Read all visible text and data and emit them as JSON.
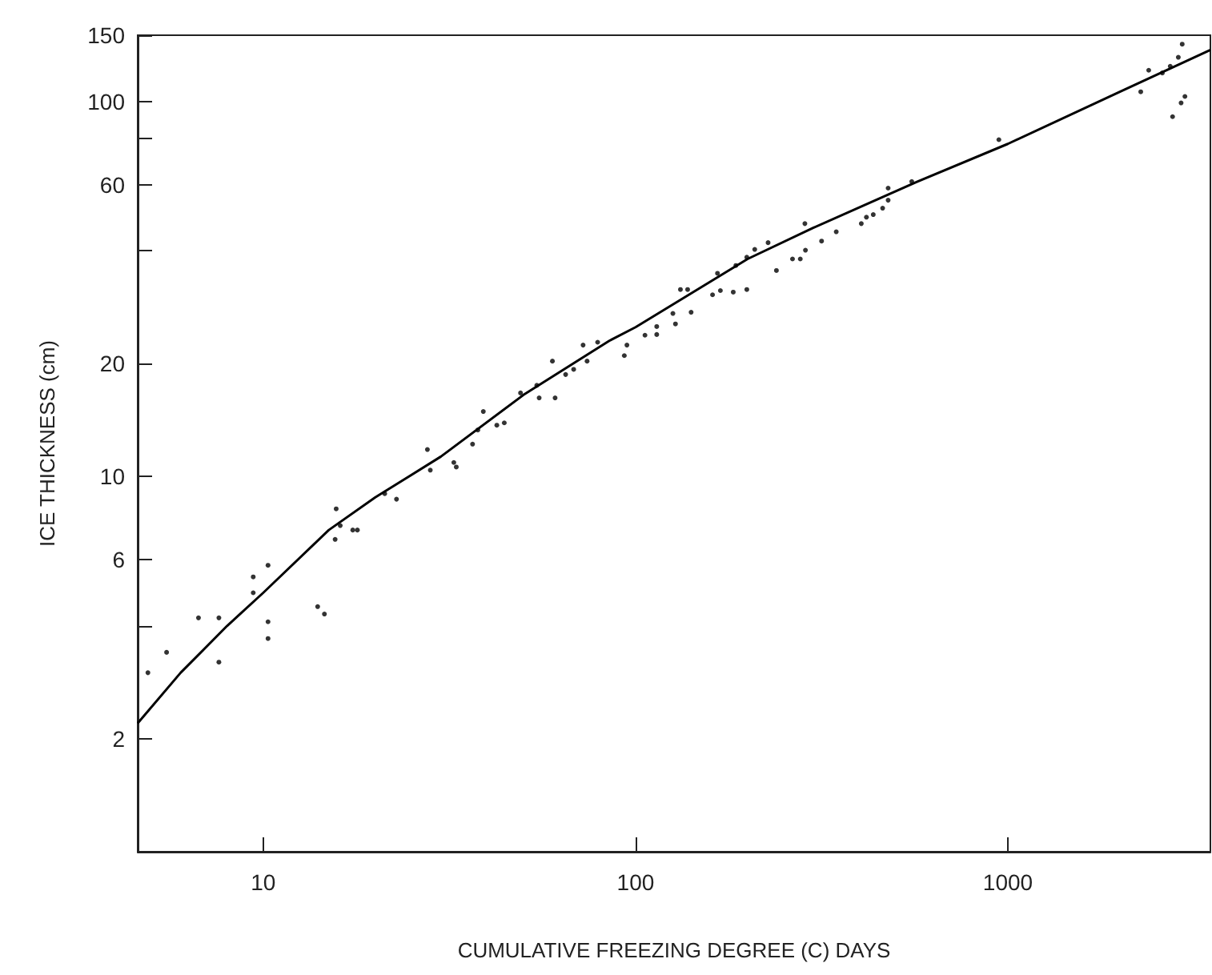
{
  "chart_data": {
    "type": "scatter",
    "xlabel": "CUMULATIVE FREEZING DEGREE (C) DAYS",
    "ylabel": "ICE THICKNESS (cm)",
    "log": "xy",
    "xlim": [
      4.6,
      3500
    ],
    "ylim": [
      1,
      150
    ],
    "xticks": [
      10,
      100,
      1000
    ],
    "yticks": [
      2,
      {
        "value": 4,
        "label": null
      },
      6,
      10,
      20,
      {
        "value": 40,
        "label": null
      },
      60,
      {
        "value": 80,
        "label": null
      },
      100,
      150
    ],
    "grid": false,
    "series": [
      {
        "color": "#000000",
        "x": [
          4.9,
          5.5,
          6.7,
          7.6,
          7.6,
          9.4,
          9.4,
          10.3,
          10.3,
          10.3,
          14.0,
          14.6,
          15.7,
          15.6,
          16.1,
          17.4,
          17.9,
          22.8,
          21.2,
          27.6,
          32.5,
          33.0,
          28.1,
          36.5,
          39.0,
          37.7,
          42.4,
          44.4,
          49.1,
          55.1,
          60.8,
          54.3,
          64.9,
          68.2,
          59.8,
          74.1,
          72.3,
          79.1,
          93.3,
          94.8,
          106,
          114,
          114,
          126,
          128,
          132,
          141,
          138,
          161,
          169,
          166,
          183,
          186,
          199,
          199,
          209,
          227,
          239,
          264,
          277,
          286,
          285,
          316,
          346,
          404,
          417,
          435,
          461,
          477,
          477,
          552,
          946,
          2275,
          2390,
          2600,
          2730,
          2870,
          2940,
          2770,
          2920,
          2990
        ],
        "values": [
          3.0,
          3.4,
          4.2,
          4.2,
          3.2,
          5.4,
          4.9,
          5.8,
          4.1,
          3.7,
          4.5,
          4.3,
          8.2,
          6.8,
          7.4,
          7.2,
          7.2,
          8.7,
          9.0,
          11.8,
          10.9,
          10.6,
          10.4,
          12.2,
          14.9,
          13.3,
          13.7,
          13.9,
          16.7,
          16.2,
          16.2,
          17.5,
          18.7,
          19.3,
          20.3,
          20.3,
          22.4,
          22.8,
          21.0,
          22.4,
          23.8,
          25.1,
          23.9,
          27.2,
          25.5,
          31.5,
          27.4,
          31.5,
          30.5,
          31.3,
          34.8,
          31.0,
          36.5,
          31.5,
          38.4,
          40.3,
          42.0,
          35.4,
          38.0,
          38.0,
          40.1,
          47.2,
          42.4,
          44.9,
          47.2,
          49.1,
          49.9,
          51.9,
          58.7,
          54.5,
          61.1,
          79,
          106,
          121,
          119,
          124,
          131,
          142,
          91,
          99,
          103
        ]
      },
      {
        "type": "line",
        "color": "#000000",
        "x": [
          4.6,
          6,
          8,
          10,
          15,
          20,
          30,
          50,
          85,
          100,
          200,
          300,
          570,
          1000,
          2000,
          3500
        ],
        "values": [
          2.2,
          3.0,
          4.0,
          4.9,
          7.2,
          8.8,
          11.3,
          16.5,
          23,
          25,
          38,
          46,
          61,
          77,
          106,
          137
        ]
      }
    ]
  }
}
